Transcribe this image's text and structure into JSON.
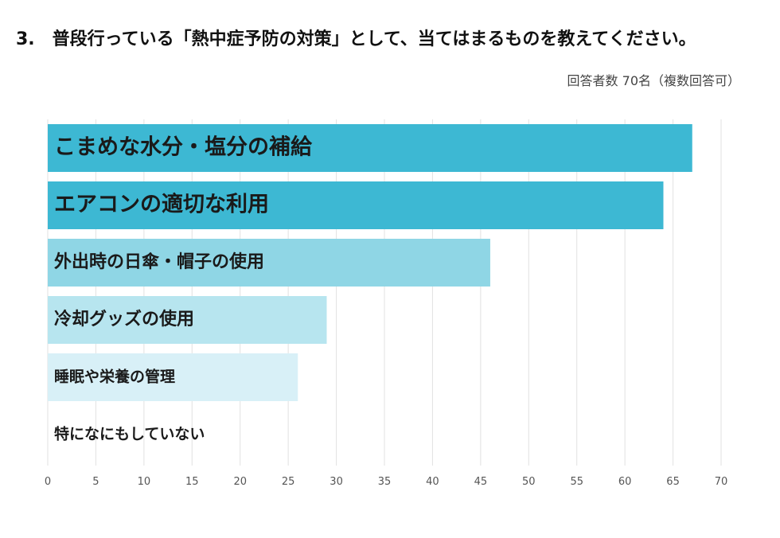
{
  "question": "3.　普段行っている「熱中症予防の対策」として、当てはまるものを教えてください。",
  "respondents_note": "回答者数 70名（複数回答可）",
  "colors": [
    "#3db8d3",
    "#3db8d3",
    "#8fd6e5",
    "#b7e5ef",
    "#d8f0f7",
    "#eaf7fb"
  ],
  "chart_data": {
    "type": "bar",
    "orientation": "horizontal",
    "title": "3.　普段行っている「熱中症予防の対策」として、当てはまるものを教えてください。",
    "categories": [
      "こまめな水分・塩分の補給",
      "エアコンの適切な利用",
      "外出時の日傘・帽子の使用",
      "冷却グッズの使用",
      "睡眠や栄養の管理",
      "特になにもしていない"
    ],
    "values": [
      67,
      64,
      46,
      29,
      26,
      0
    ],
    "xlim": [
      0,
      70
    ],
    "xticks": [
      "0",
      "5",
      "10",
      "15",
      "20",
      "25",
      "30",
      "35",
      "40",
      "45",
      "50",
      "55",
      "60",
      "65",
      "70"
    ],
    "grid": true,
    "legend": "none"
  }
}
